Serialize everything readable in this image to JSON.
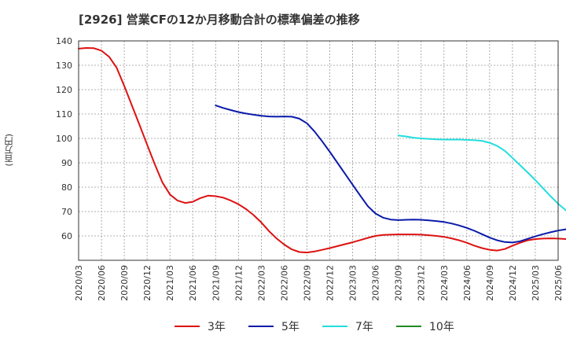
{
  "chart_data": {
    "type": "line",
    "title": "[2926]  営業CFの12か月移動合計の標準偏差の推移",
    "ylabel": "(百万円)",
    "xlabel": "",
    "ylim": [
      50,
      140
    ],
    "y_ticks": [
      60,
      70,
      80,
      90,
      100,
      110,
      120,
      130,
      140
    ],
    "x_ticks": [
      "2020/03",
      "2020/06",
      "2020/09",
      "2020/12",
      "2021/03",
      "2021/06",
      "2021/09",
      "2021/12",
      "2022/03",
      "2022/06",
      "2022/09",
      "2022/12",
      "2023/03",
      "2023/06",
      "2023/09",
      "2023/12",
      "2024/03",
      "2024/06",
      "2024/09",
      "2024/12",
      "2025/03",
      "2025/06"
    ],
    "grid": true,
    "legend_position": "bottom",
    "series": [
      {
        "name": "3年",
        "color": "#dd1111",
        "points": [
          [
            "2020/03",
            136.8
          ],
          [
            "2020/04",
            137.1
          ],
          [
            "2020/05",
            137.0
          ],
          [
            "2020/06",
            136.0
          ],
          [
            "2020/07",
            133.5
          ],
          [
            "2020/08",
            129.0
          ],
          [
            "2020/09",
            121.5
          ],
          [
            "2020/10",
            113.5
          ],
          [
            "2020/11",
            105.5
          ],
          [
            "2020/12",
            97.5
          ],
          [
            "2021/01",
            89.5
          ],
          [
            "2021/02",
            82.0
          ],
          [
            "2021/03",
            77.0
          ],
          [
            "2021/04",
            74.5
          ],
          [
            "2021/05",
            73.5
          ],
          [
            "2021/06",
            74.0
          ],
          [
            "2021/07",
            75.5
          ],
          [
            "2021/08",
            76.5
          ],
          [
            "2021/09",
            76.3
          ],
          [
            "2021/10",
            75.7
          ],
          [
            "2021/11",
            74.5
          ],
          [
            "2021/12",
            73.0
          ],
          [
            "2022/01",
            71.0
          ],
          [
            "2022/02",
            68.5
          ],
          [
            "2022/03",
            65.5
          ],
          [
            "2022/04",
            62.0
          ],
          [
            "2022/05",
            59.0
          ],
          [
            "2022/06",
            56.5
          ],
          [
            "2022/07",
            54.5
          ],
          [
            "2022/08",
            53.4
          ],
          [
            "2022/09",
            53.2
          ],
          [
            "2022/10",
            53.6
          ],
          [
            "2022/11",
            54.3
          ],
          [
            "2022/12",
            55.0
          ],
          [
            "2023/01",
            55.8
          ],
          [
            "2023/02",
            56.6
          ],
          [
            "2023/03",
            57.4
          ],
          [
            "2023/04",
            58.3
          ],
          [
            "2023/05",
            59.2
          ],
          [
            "2023/06",
            60.0
          ],
          [
            "2023/07",
            60.4
          ],
          [
            "2023/08",
            60.5
          ],
          [
            "2023/09",
            60.6
          ],
          [
            "2023/10",
            60.6
          ],
          [
            "2023/11",
            60.6
          ],
          [
            "2023/12",
            60.5
          ],
          [
            "2024/01",
            60.3
          ],
          [
            "2024/02",
            60.0
          ],
          [
            "2024/03",
            59.6
          ],
          [
            "2024/04",
            59.0
          ],
          [
            "2024/05",
            58.2
          ],
          [
            "2024/06",
            57.2
          ],
          [
            "2024/07",
            56.0
          ],
          [
            "2024/08",
            55.0
          ],
          [
            "2024/09",
            54.3
          ],
          [
            "2024/10",
            54.0
          ],
          [
            "2024/11",
            54.6
          ],
          [
            "2024/12",
            56.0
          ],
          [
            "2025/01",
            57.2
          ],
          [
            "2025/02",
            58.2
          ],
          [
            "2025/03",
            58.7
          ],
          [
            "2025/04",
            58.9
          ],
          [
            "2025/05",
            59.0
          ],
          [
            "2025/06",
            58.9
          ],
          [
            "2025/07",
            58.7
          ]
        ]
      },
      {
        "name": "5年",
        "color": "#0a1aaa",
        "points": [
          [
            "2021/09",
            113.5
          ],
          [
            "2021/10",
            112.5
          ],
          [
            "2021/11",
            111.6
          ],
          [
            "2021/12",
            110.8
          ],
          [
            "2022/01",
            110.2
          ],
          [
            "2022/02",
            109.7
          ],
          [
            "2022/03",
            109.3
          ],
          [
            "2022/04",
            109.0
          ],
          [
            "2022/05",
            108.9
          ],
          [
            "2022/06",
            109.0
          ],
          [
            "2022/07",
            108.9
          ],
          [
            "2022/08",
            108.1
          ],
          [
            "2022/09",
            106.2
          ],
          [
            "2022/10",
            102.8
          ],
          [
            "2022/11",
            98.8
          ],
          [
            "2022/12",
            94.5
          ],
          [
            "2023/01",
            90.0
          ],
          [
            "2023/02",
            85.5
          ],
          [
            "2023/03",
            81.0
          ],
          [
            "2023/04",
            76.5
          ],
          [
            "2023/05",
            72.2
          ],
          [
            "2023/06",
            69.2
          ],
          [
            "2023/07",
            67.5
          ],
          [
            "2023/08",
            66.7
          ],
          [
            "2023/09",
            66.5
          ],
          [
            "2023/10",
            66.6
          ],
          [
            "2023/11",
            66.7
          ],
          [
            "2023/12",
            66.6
          ],
          [
            "2024/01",
            66.4
          ],
          [
            "2024/02",
            66.1
          ],
          [
            "2024/03",
            65.7
          ],
          [
            "2024/04",
            65.1
          ],
          [
            "2024/05",
            64.3
          ],
          [
            "2024/06",
            63.3
          ],
          [
            "2024/07",
            62.1
          ],
          [
            "2024/08",
            60.7
          ],
          [
            "2024/09",
            59.3
          ],
          [
            "2024/10",
            58.2
          ],
          [
            "2024/11",
            57.5
          ],
          [
            "2024/12",
            57.3
          ],
          [
            "2025/01",
            57.8
          ],
          [
            "2025/02",
            58.8
          ],
          [
            "2025/03",
            59.8
          ],
          [
            "2025/04",
            60.7
          ],
          [
            "2025/05",
            61.5
          ],
          [
            "2025/06",
            62.2
          ],
          [
            "2025/07",
            62.7
          ],
          [
            "2025/08",
            63.1
          ],
          [
            "2025/09",
            63.4
          ]
        ]
      },
      {
        "name": "7年",
        "color": "#22dddd",
        "points": [
          [
            "2023/09",
            101.2
          ],
          [
            "2023/10",
            100.8
          ],
          [
            "2023/11",
            100.3
          ],
          [
            "2023/12",
            100.0
          ],
          [
            "2024/01",
            99.8
          ],
          [
            "2024/02",
            99.6
          ],
          [
            "2024/03",
            99.5
          ],
          [
            "2024/04",
            99.5
          ],
          [
            "2024/05",
            99.5
          ],
          [
            "2024/06",
            99.4
          ],
          [
            "2024/07",
            99.3
          ],
          [
            "2024/08",
            99.0
          ],
          [
            "2024/09",
            98.2
          ],
          [
            "2024/10",
            96.9
          ],
          [
            "2024/11",
            94.9
          ],
          [
            "2024/12",
            92.0
          ],
          [
            "2025/01",
            89.0
          ],
          [
            "2025/02",
            86.0
          ],
          [
            "2025/03",
            82.9
          ],
          [
            "2025/04",
            79.6
          ],
          [
            "2025/05",
            76.3
          ],
          [
            "2025/06",
            73.2
          ],
          [
            "2025/07",
            70.5
          ]
        ]
      },
      {
        "name": "10年",
        "color": "#228b22",
        "points": []
      }
    ]
  }
}
